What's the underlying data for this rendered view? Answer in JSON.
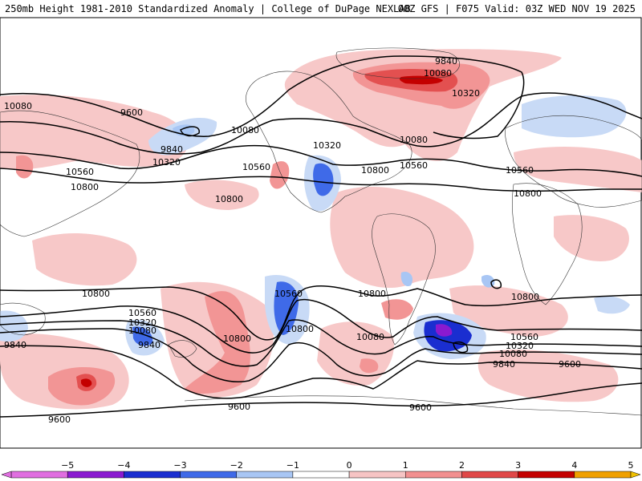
{
  "header": {
    "left": "250mb Height 1981-2010 Standardized Anomaly | College of DuPage NEXLAB",
    "right": "00Z GFS | F075 Valid: 03Z WED NOV 19 2025"
  },
  "contour_labels": [
    {
      "text": "9840"
    },
    {
      "text": "10080"
    },
    {
      "text": "10320"
    },
    {
      "text": "10080"
    },
    {
      "text": "9600"
    },
    {
      "text": "10080"
    },
    {
      "text": "9840"
    },
    {
      "text": "10320"
    },
    {
      "text": "10560"
    },
    {
      "text": "10800"
    },
    {
      "text": "10560"
    },
    {
      "text": "10800"
    },
    {
      "text": "10320"
    },
    {
      "text": "10080"
    },
    {
      "text": "10800"
    },
    {
      "text": "10560"
    },
    {
      "text": "10560"
    },
    {
      "text": "10800"
    },
    {
      "text": "10800"
    },
    {
      "text": "10800"
    },
    {
      "text": "10560"
    },
    {
      "text": "10800"
    },
    {
      "text": "10800"
    },
    {
      "text": "10560"
    },
    {
      "text": "10320"
    },
    {
      "text": "10080"
    },
    {
      "text": "9840"
    },
    {
      "text": "10800"
    },
    {
      "text": "10080"
    },
    {
      "text": "10320"
    },
    {
      "text": "10560"
    },
    {
      "text": "10320"
    },
    {
      "text": "10080"
    },
    {
      "text": "9840"
    },
    {
      "text": "9600"
    },
    {
      "text": "9840"
    },
    {
      "text": "9600"
    },
    {
      "text": "9600"
    },
    {
      "text": "9600"
    }
  ],
  "colorbar": {
    "ticks": [
      "−5",
      "−4",
      "−3",
      "−2",
      "−1",
      "0",
      "1",
      "2",
      "3",
      "4",
      "5"
    ],
    "colors": [
      "#e06ee0",
      "#8a1ad0",
      "#1a2ed0",
      "#3f6ae8",
      "#a8c6f4",
      "#ffffff",
      "#f6c4c4",
      "#f29090",
      "#e04848",
      "#c40000",
      "#f0a000"
    ]
  }
}
